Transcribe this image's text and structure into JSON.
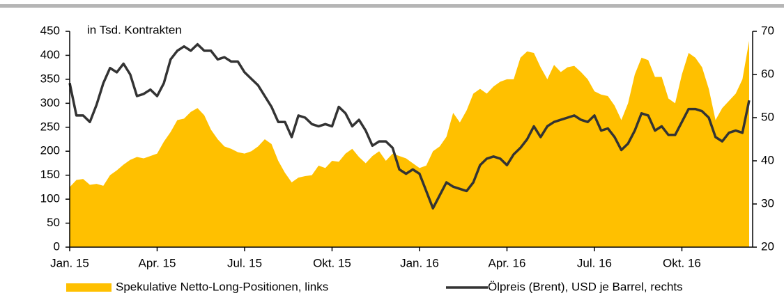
{
  "chart_data": {
    "type": "area_line",
    "annotation": "in Tsd. Kontrakten",
    "categories": [
      "Jan. 15",
      null,
      null,
      null,
      null,
      null,
      null,
      null,
      null,
      null,
      null,
      null,
      null,
      "Apr. 15",
      null,
      null,
      null,
      null,
      null,
      null,
      null,
      null,
      null,
      null,
      null,
      null,
      "Jul. 15",
      null,
      null,
      null,
      null,
      null,
      null,
      null,
      null,
      null,
      null,
      null,
      null,
      "Okt. 15",
      null,
      null,
      null,
      null,
      null,
      null,
      null,
      null,
      null,
      null,
      null,
      null,
      "Jan. 16",
      null,
      null,
      null,
      null,
      null,
      null,
      null,
      null,
      null,
      null,
      null,
      null,
      "Apr. 16",
      null,
      null,
      null,
      null,
      null,
      null,
      null,
      null,
      null,
      null,
      null,
      null,
      "Jul. 16",
      null,
      null,
      null,
      null,
      null,
      null,
      null,
      null,
      null,
      null,
      null,
      null,
      "Okt. 16",
      null,
      null,
      null,
      null,
      null,
      null,
      null,
      null,
      null,
      null
    ],
    "series": [
      {
        "name": "Spekulative Netto-Long-Positionen, links",
        "color": "#ffc000",
        "kind": "area",
        "values": [
          125,
          140,
          142,
          130,
          132,
          128,
          150,
          160,
          172,
          182,
          188,
          185,
          190,
          195,
          220,
          240,
          265,
          268,
          282,
          290,
          275,
          245,
          225,
          210,
          205,
          198,
          195,
          200,
          210,
          225,
          215,
          180,
          155,
          135,
          145,
          148,
          150,
          170,
          165,
          180,
          178,
          195,
          205,
          188,
          175,
          190,
          200,
          180,
          195,
          190,
          185,
          175,
          165,
          170,
          200,
          210,
          230,
          280,
          260,
          285,
          320,
          330,
          320,
          335,
          345,
          350,
          350,
          395,
          408,
          405,
          375,
          350,
          380,
          365,
          375,
          378,
          365,
          350,
          325,
          318,
          315,
          295,
          265,
          300,
          360,
          395,
          390,
          355,
          355,
          310,
          300,
          360,
          405,
          395,
          375,
          330,
          265,
          290,
          305,
          320,
          350,
          430
        ]
      },
      {
        "name": "Ölpreis (Brent), USD je Barrel, rechts",
        "color": "#333333",
        "kind": "line",
        "axis": "y2",
        "values": [
          58,
          50.5,
          50.5,
          49,
          53,
          58,
          61.5,
          60.5,
          62.5,
          60,
          55,
          55.5,
          56.5,
          55,
          58,
          63.5,
          65.5,
          66.5,
          65.5,
          67,
          65.5,
          65.5,
          63.5,
          64,
          63,
          63,
          60.5,
          59,
          57.5,
          55,
          52.5,
          49,
          49,
          45.5,
          50.5,
          50,
          48.5,
          48,
          48.5,
          48,
          52.5,
          51,
          48,
          49.5,
          47,
          43.5,
          44.5,
          44.5,
          43,
          38,
          37,
          38,
          37,
          33,
          29,
          32,
          35,
          34,
          33.5,
          33,
          35,
          39,
          40.5,
          41,
          40.5,
          39,
          41.5,
          43,
          45,
          48,
          45.5,
          48,
          49,
          49.5,
          50,
          50.5,
          49.5,
          49,
          50.5,
          47,
          47.5,
          45.5,
          42.5,
          44,
          47,
          51,
          50.5,
          47,
          48,
          46,
          46,
          49,
          52,
          52,
          51.5,
          50,
          45.5,
          44.5,
          46.5,
          47,
          46.5,
          54
        ]
      }
    ],
    "ylim": [
      0,
      450
    ],
    "yticks": [
      0,
      50,
      100,
      150,
      200,
      250,
      300,
      350,
      400,
      450
    ],
    "y2lim": [
      20,
      70
    ],
    "y2ticks": [
      20,
      30,
      40,
      50,
      60,
      70
    ],
    "legend": "bottom"
  }
}
